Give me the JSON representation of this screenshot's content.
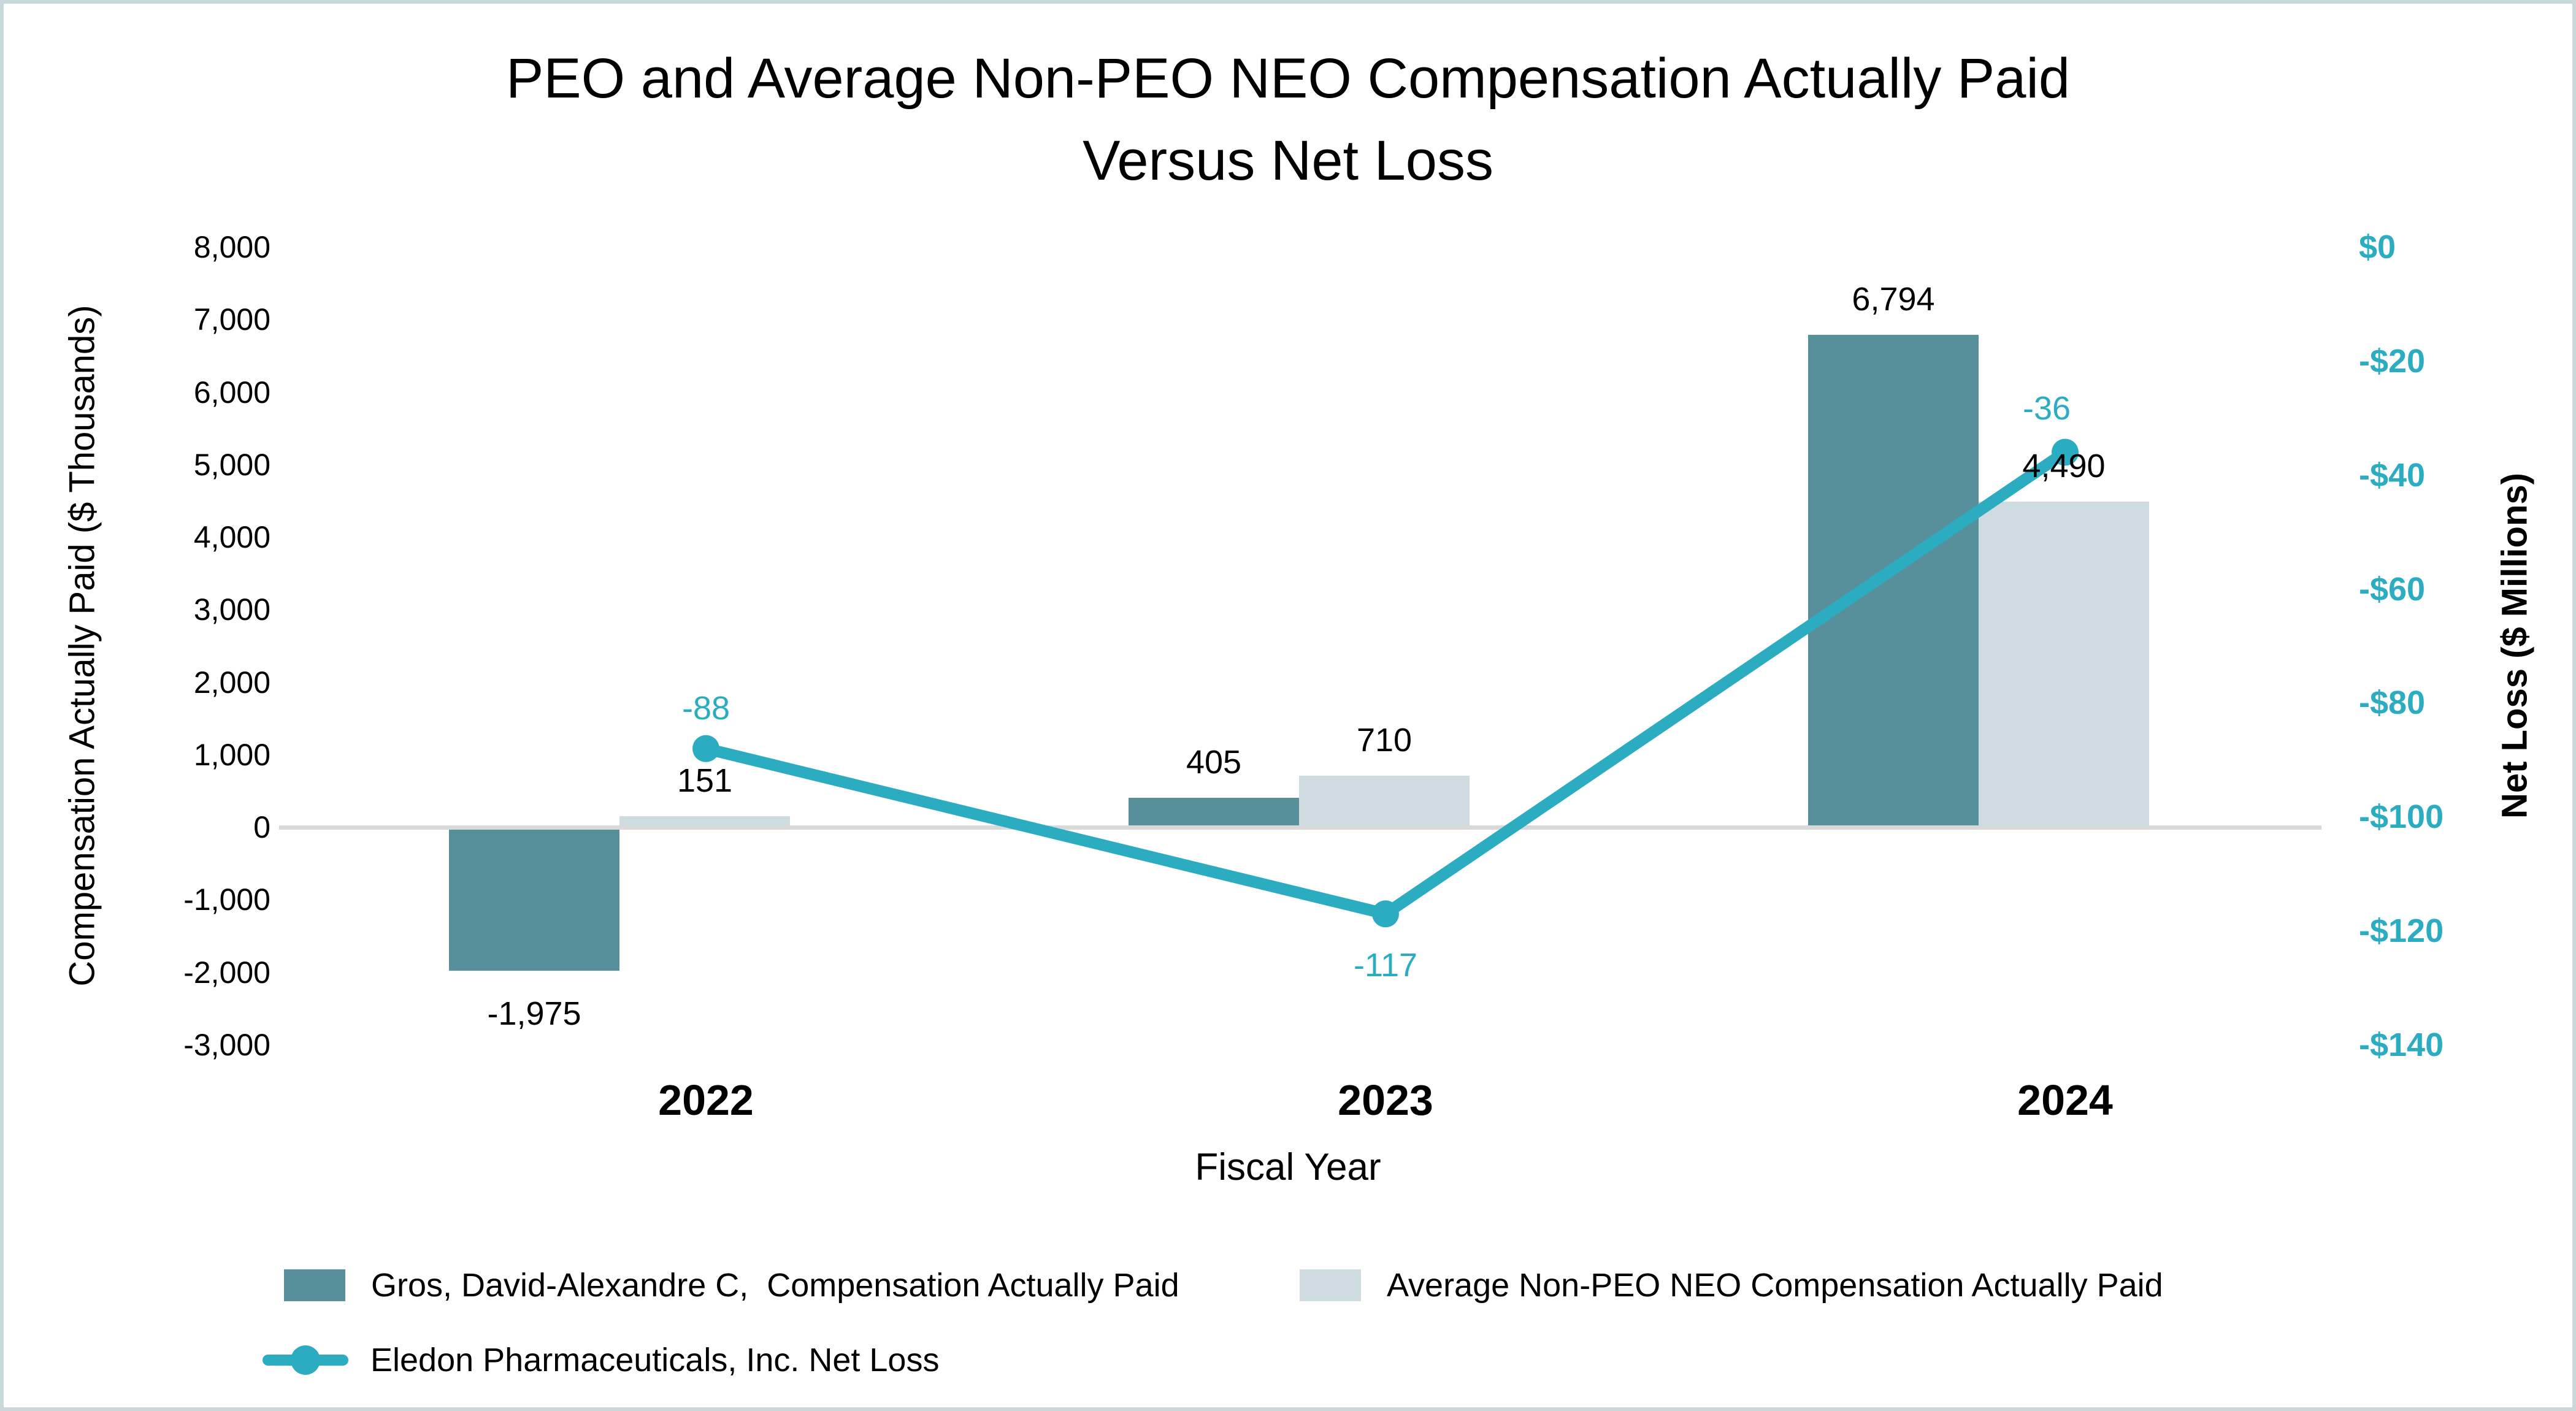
{
  "title": {
    "line1": "PEO and Average Non-PEO NEO Compensation Actually Paid",
    "line2": "Versus Net Loss"
  },
  "left_axis": {
    "title": "Compensation Actually Paid ($ Thousands)",
    "ticks": [
      {
        "label": "8,000",
        "value": 8000
      },
      {
        "label": "7,000",
        "value": 7000
      },
      {
        "label": "6,000",
        "value": 6000
      },
      {
        "label": "5,000",
        "value": 5000
      },
      {
        "label": "4,000",
        "value": 4000
      },
      {
        "label": "3,000",
        "value": 3000
      },
      {
        "label": "2,000",
        "value": 2000
      },
      {
        "label": "1,000",
        "value": 1000
      },
      {
        "label": "0",
        "value": 0
      },
      {
        "label": "-1,000",
        "value": -1000
      },
      {
        "label": "-2,000",
        "value": -2000
      },
      {
        "label": "-3,000",
        "value": -3000
      }
    ]
  },
  "right_axis": {
    "title": "Net Loss ($ Millions)",
    "ticks": [
      {
        "label": "$0",
        "value": 0
      },
      {
        "label": "-$20",
        "value": -20
      },
      {
        "label": "-$40",
        "value": -40
      },
      {
        "label": "-$60",
        "value": -60
      },
      {
        "label": "-$80",
        "value": -80
      },
      {
        "label": "-$100",
        "value": -100
      },
      {
        "label": "-$120",
        "value": -120
      },
      {
        "label": "-$140",
        "value": -140
      }
    ]
  },
  "x_axis": {
    "title": "Fiscal Year",
    "categories": [
      "2022",
      "2023",
      "2024"
    ]
  },
  "colors": {
    "peo_bar": "#57909A",
    "non_peo_bar": "#CEDCE1",
    "net_loss_line": "#2BACC1",
    "zero_line": "#D9D9D9",
    "text": "#000000",
    "frame_border": "#CBD8DB"
  },
  "chart_data": {
    "type": "combo",
    "categories": [
      "2022",
      "2023",
      "2024"
    ],
    "series": [
      {
        "name": "Gros, David-Alexandre C,  Compensation Actually Paid",
        "type": "bar",
        "axis": "left",
        "color": "#57909A",
        "values": [
          -1975,
          405,
          6794
        ],
        "labels": [
          "-1,975",
          "405",
          "6,794"
        ]
      },
      {
        "name": "Average Non-PEO NEO Compensation Actually Paid",
        "type": "bar",
        "axis": "left",
        "color": "#CEDCE1",
        "values": [
          151,
          710,
          4490
        ],
        "labels": [
          "151",
          "710",
          "4,490"
        ]
      },
      {
        "name": "Eledon Pharmaceuticals, Inc. Net Loss",
        "type": "line",
        "axis": "right",
        "color": "#2BACC1",
        "values": [
          -88,
          -117,
          -36
        ],
        "labels": [
          "-88",
          "-117",
          "-36"
        ]
      }
    ],
    "title": "PEO and Average Non-PEO NEO Compensation Actually Paid Versus Net Loss",
    "xlabel": "Fiscal Year",
    "ylabel_left": "Compensation Actually Paid ($ Thousands)",
    "ylabel_right": "Net Loss ($ Millions)",
    "ylim_left": [
      -3000,
      8000
    ],
    "ylim_right": [
      -140,
      0
    ],
    "grid": false,
    "legend_position": "bottom"
  },
  "legend": [
    {
      "label": "Gros, David-Alexandre C,  Compensation Actually Paid",
      "marker": "square",
      "color": "#57909A"
    },
    {
      "label": "Average Non-PEO NEO Compensation Actually Paid",
      "marker": "square",
      "color": "#CEDCE1"
    },
    {
      "label": "Eledon Pharmaceuticals, Inc. Net Loss",
      "marker": "line-dot",
      "color": "#2BACC1"
    }
  ]
}
